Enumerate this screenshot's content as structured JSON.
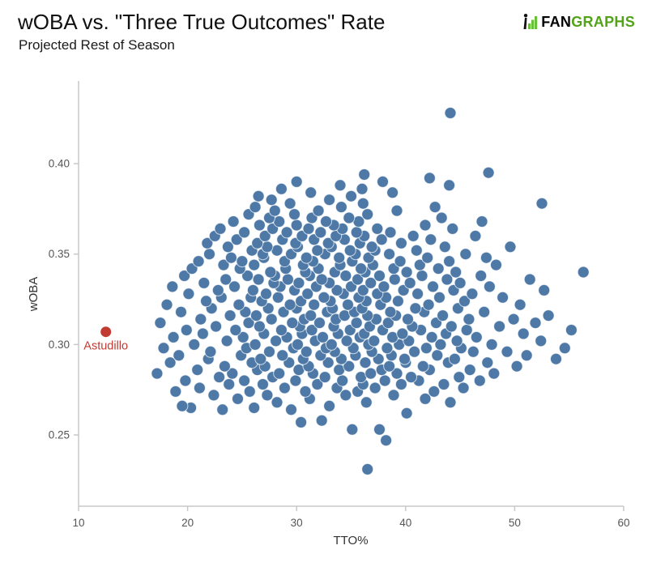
{
  "header": {
    "title": "wOBA vs. \"Three True Outcomes\" Rate",
    "subtitle": "Projected Rest of Season",
    "logo": {
      "brand_black": "FAN",
      "brand_green": "GRAPHS"
    }
  },
  "colors": {
    "point": "#4e79a7",
    "point_stroke": "#ffffff",
    "highlight": "#c23b33",
    "axis": "#c8c8c8",
    "tick_text": "#555555",
    "axis_title": "#333333",
    "logo_green": "#6abf3a",
    "logo_black": "#111111"
  },
  "chart_data": {
    "type": "scatter",
    "title": "wOBA vs. \"Three True Outcomes\" Rate",
    "subtitle": "Projected Rest of Season",
    "xlabel": "TTO%",
    "ylabel": "wOBA",
    "xlim": [
      10,
      60
    ],
    "ylim": [
      0.2106,
      0.4457
    ],
    "xticks": [
      10,
      20,
      30,
      40,
      50,
      60
    ],
    "xtick_labels": [
      "10",
      "20",
      "30",
      "40",
      "50",
      "60"
    ],
    "yticks": [
      0.25,
      0.3,
      0.35,
      0.4
    ],
    "ytick_labels": [
      "0.25",
      "0.30",
      "0.35",
      "0.40"
    ],
    "grid": false,
    "legend": "none",
    "highlight": {
      "label": "Astudillo",
      "x": 12.5,
      "y": 0.307
    },
    "points": [
      [
        36.5,
        0.231
      ],
      [
        38.2,
        0.247
      ],
      [
        35.1,
        0.253
      ],
      [
        37.6,
        0.253
      ],
      [
        30.4,
        0.257
      ],
      [
        32.3,
        0.258
      ],
      [
        40.1,
        0.262
      ],
      [
        23.2,
        0.264
      ],
      [
        29.5,
        0.264
      ],
      [
        20.3,
        0.265
      ],
      [
        26.1,
        0.265
      ],
      [
        19.5,
        0.266
      ],
      [
        33.0,
        0.266
      ],
      [
        28.2,
        0.268
      ],
      [
        36.4,
        0.268
      ],
      [
        44.1,
        0.268
      ],
      [
        24.6,
        0.27
      ],
      [
        31.2,
        0.27
      ],
      [
        41.8,
        0.27
      ],
      [
        22.4,
        0.272
      ],
      [
        27.3,
        0.272
      ],
      [
        34.5,
        0.272
      ],
      [
        38.9,
        0.272
      ],
      [
        18.9,
        0.274
      ],
      [
        25.7,
        0.274
      ],
      [
        30.8,
        0.274
      ],
      [
        35.6,
        0.274
      ],
      [
        42.6,
        0.274
      ],
      [
        21.1,
        0.276
      ],
      [
        28.9,
        0.276
      ],
      [
        33.7,
        0.276
      ],
      [
        37.2,
        0.276
      ],
      [
        45.3,
        0.276
      ],
      [
        23.8,
        0.278
      ],
      [
        26.9,
        0.278
      ],
      [
        31.9,
        0.278
      ],
      [
        36.1,
        0.278
      ],
      [
        39.6,
        0.278
      ],
      [
        43.5,
        0.278
      ],
      [
        19.8,
        0.28
      ],
      [
        25.2,
        0.28
      ],
      [
        29.9,
        0.28
      ],
      [
        34.2,
        0.28
      ],
      [
        38.1,
        0.28
      ],
      [
        41.2,
        0.28
      ],
      [
        46.8,
        0.28
      ],
      [
        22.9,
        0.282
      ],
      [
        27.8,
        0.282
      ],
      [
        32.6,
        0.282
      ],
      [
        35.9,
        0.282
      ],
      [
        40.5,
        0.282
      ],
      [
        44.9,
        0.282
      ],
      [
        17.2,
        0.284
      ],
      [
        24.1,
        0.284
      ],
      [
        28.4,
        0.284
      ],
      [
        31.5,
        0.284
      ],
      [
        36.8,
        0.284
      ],
      [
        39.2,
        0.284
      ],
      [
        48.1,
        0.284
      ],
      [
        20.9,
        0.286
      ],
      [
        26.4,
        0.286
      ],
      [
        30.2,
        0.286
      ],
      [
        33.9,
        0.286
      ],
      [
        37.8,
        0.286
      ],
      [
        42.2,
        0.286
      ],
      [
        45.9,
        0.286
      ],
      [
        23.4,
        0.288
      ],
      [
        27.1,
        0.288
      ],
      [
        31.1,
        0.288
      ],
      [
        34.8,
        0.288
      ],
      [
        38.5,
        0.288
      ],
      [
        41.6,
        0.288
      ],
      [
        50.2,
        0.288
      ],
      [
        18.4,
        0.29
      ],
      [
        25.9,
        0.29
      ],
      [
        29.3,
        0.29
      ],
      [
        32.9,
        0.29
      ],
      [
        36.3,
        0.29
      ],
      [
        40.0,
        0.29
      ],
      [
        43.9,
        0.29
      ],
      [
        47.5,
        0.29
      ],
      [
        21.9,
        0.292
      ],
      [
        26.7,
        0.292
      ],
      [
        30.6,
        0.292
      ],
      [
        34.1,
        0.292
      ],
      [
        37.5,
        0.292
      ],
      [
        39.9,
        0.292
      ],
      [
        44.5,
        0.292
      ],
      [
        53.8,
        0.292
      ],
      [
        19.2,
        0.294
      ],
      [
        24.9,
        0.294
      ],
      [
        28.7,
        0.294
      ],
      [
        32.2,
        0.294
      ],
      [
        35.4,
        0.294
      ],
      [
        38.7,
        0.294
      ],
      [
        42.9,
        0.294
      ],
      [
        51.1,
        0.294
      ],
      [
        22.1,
        0.296
      ],
      [
        27.5,
        0.296
      ],
      [
        30.9,
        0.296
      ],
      [
        33.5,
        0.296
      ],
      [
        36.9,
        0.296
      ],
      [
        40.8,
        0.296
      ],
      [
        46.2,
        0.296
      ],
      [
        49.3,
        0.296
      ],
      [
        17.8,
        0.298
      ],
      [
        25.4,
        0.298
      ],
      [
        29.7,
        0.298
      ],
      [
        32.7,
        0.298
      ],
      [
        35.2,
        0.298
      ],
      [
        38.3,
        0.298
      ],
      [
        41.9,
        0.298
      ],
      [
        45.1,
        0.298
      ],
      [
        54.6,
        0.298
      ],
      [
        20.6,
        0.3
      ],
      [
        26.2,
        0.3
      ],
      [
        30.1,
        0.3
      ],
      [
        33.2,
        0.3
      ],
      [
        36.6,
        0.3
      ],
      [
        39.4,
        0.3
      ],
      [
        43.2,
        0.3
      ],
      [
        47.9,
        0.3
      ],
      [
        23.6,
        0.302
      ],
      [
        28.1,
        0.302
      ],
      [
        31.7,
        0.302
      ],
      [
        34.6,
        0.302
      ],
      [
        37.1,
        0.302
      ],
      [
        40.3,
        0.302
      ],
      [
        44.7,
        0.302
      ],
      [
        52.4,
        0.302
      ],
      [
        18.7,
        0.304
      ],
      [
        25.1,
        0.304
      ],
      [
        29.1,
        0.304
      ],
      [
        32.4,
        0.304
      ],
      [
        35.8,
        0.304
      ],
      [
        38.8,
        0.304
      ],
      [
        42.4,
        0.304
      ],
      [
        46.5,
        0.304
      ],
      [
        21.4,
        0.306
      ],
      [
        27.0,
        0.306
      ],
      [
        30.5,
        0.306
      ],
      [
        33.8,
        0.306
      ],
      [
        36.2,
        0.306
      ],
      [
        39.7,
        0.306
      ],
      [
        43.7,
        0.306
      ],
      [
        50.8,
        0.306
      ],
      [
        19.9,
        0.308
      ],
      [
        24.4,
        0.308
      ],
      [
        28.6,
        0.308
      ],
      [
        31.4,
        0.308
      ],
      [
        34.9,
        0.308
      ],
      [
        37.9,
        0.308
      ],
      [
        41.4,
        0.308
      ],
      [
        45.6,
        0.308
      ],
      [
        55.2,
        0.308
      ],
      [
        22.6,
        0.31
      ],
      [
        26.6,
        0.31
      ],
      [
        30.3,
        0.31
      ],
      [
        33.4,
        0.31
      ],
      [
        36.7,
        0.31
      ],
      [
        40.6,
        0.31
      ],
      [
        44.2,
        0.31
      ],
      [
        48.6,
        0.31
      ],
      [
        17.5,
        0.312
      ],
      [
        25.6,
        0.312
      ],
      [
        29.6,
        0.312
      ],
      [
        32.1,
        0.312
      ],
      [
        35.5,
        0.312
      ],
      [
        38.4,
        0.312
      ],
      [
        42.8,
        0.312
      ],
      [
        51.9,
        0.312
      ],
      [
        21.2,
        0.314
      ],
      [
        27.7,
        0.314
      ],
      [
        30.7,
        0.314
      ],
      [
        33.6,
        0.314
      ],
      [
        37.3,
        0.314
      ],
      [
        40.2,
        0.314
      ],
      [
        45.8,
        0.314
      ],
      [
        49.9,
        0.314
      ],
      [
        23.9,
        0.316
      ],
      [
        26.3,
        0.316
      ],
      [
        31.3,
        0.316
      ],
      [
        34.4,
        0.316
      ],
      [
        36.5,
        0.316
      ],
      [
        39.1,
        0.316
      ],
      [
        43.4,
        0.316
      ],
      [
        53.1,
        0.316
      ],
      [
        19.4,
        0.318
      ],
      [
        25.3,
        0.318
      ],
      [
        28.8,
        0.318
      ],
      [
        32.8,
        0.318
      ],
      [
        35.3,
        0.318
      ],
      [
        38.6,
        0.318
      ],
      [
        41.7,
        0.318
      ],
      [
        47.2,
        0.318
      ],
      [
        22.2,
        0.32
      ],
      [
        27.4,
        0.32
      ],
      [
        30.0,
        0.32
      ],
      [
        33.3,
        0.32
      ],
      [
        36.0,
        0.32
      ],
      [
        40.9,
        0.32
      ],
      [
        44.8,
        0.32
      ],
      [
        18.1,
        0.322
      ],
      [
        24.7,
        0.322
      ],
      [
        29.4,
        0.322
      ],
      [
        31.6,
        0.322
      ],
      [
        34.7,
        0.322
      ],
      [
        37.7,
        0.322
      ],
      [
        42.1,
        0.322
      ],
      [
        50.5,
        0.322
      ],
      [
        21.7,
        0.324
      ],
      [
        26.8,
        0.324
      ],
      [
        30.4,
        0.324
      ],
      [
        33.1,
        0.324
      ],
      [
        36.4,
        0.324
      ],
      [
        39.3,
        0.324
      ],
      [
        45.4,
        0.324
      ],
      [
        23.1,
        0.326
      ],
      [
        25.8,
        0.326
      ],
      [
        28.3,
        0.326
      ],
      [
        32.5,
        0.326
      ],
      [
        35.7,
        0.326
      ],
      [
        38.2,
        0.326
      ],
      [
        43.1,
        0.326
      ],
      [
        48.9,
        0.326
      ],
      [
        20.1,
        0.328
      ],
      [
        27.2,
        0.328
      ],
      [
        31.0,
        0.328
      ],
      [
        34.3,
        0.328
      ],
      [
        37.4,
        0.328
      ],
      [
        41.1,
        0.328
      ],
      [
        46.1,
        0.328
      ],
      [
        22.8,
        0.33
      ],
      [
        26.0,
        0.33
      ],
      [
        29.8,
        0.33
      ],
      [
        33.7,
        0.33
      ],
      [
        36.1,
        0.33
      ],
      [
        39.8,
        0.33
      ],
      [
        44.4,
        0.33
      ],
      [
        52.7,
        0.33
      ],
      [
        18.6,
        0.332
      ],
      [
        24.3,
        0.332
      ],
      [
        28.5,
        0.332
      ],
      [
        31.8,
        0.332
      ],
      [
        35.0,
        0.332
      ],
      [
        38.0,
        0.332
      ],
      [
        42.5,
        0.332
      ],
      [
        47.7,
        0.332
      ],
      [
        21.5,
        0.334
      ],
      [
        27.9,
        0.334
      ],
      [
        30.2,
        0.334
      ],
      [
        33.0,
        0.334
      ],
      [
        36.8,
        0.334
      ],
      [
        40.4,
        0.334
      ],
      [
        45.0,
        0.334
      ],
      [
        23.5,
        0.336
      ],
      [
        26.5,
        0.336
      ],
      [
        29.2,
        0.336
      ],
      [
        32.3,
        0.336
      ],
      [
        35.6,
        0.336
      ],
      [
        39.0,
        0.336
      ],
      [
        43.8,
        0.336
      ],
      [
        51.4,
        0.336
      ],
      [
        19.7,
        0.338
      ],
      [
        25.5,
        0.338
      ],
      [
        28.0,
        0.338
      ],
      [
        31.2,
        0.338
      ],
      [
        34.5,
        0.338
      ],
      [
        37.6,
        0.338
      ],
      [
        41.5,
        0.338
      ],
      [
        46.9,
        0.338
      ],
      [
        27.6,
        0.34
      ],
      [
        30.8,
        0.34
      ],
      [
        33.5,
        0.34
      ],
      [
        36.3,
        0.34
      ],
      [
        40.1,
        0.34
      ],
      [
        44.6,
        0.34
      ],
      [
        56.3,
        0.34
      ],
      [
        20.4,
        0.342
      ],
      [
        24.8,
        0.342
      ],
      [
        29.0,
        0.342
      ],
      [
        32.0,
        0.342
      ],
      [
        35.9,
        0.342
      ],
      [
        38.9,
        0.342
      ],
      [
        43.0,
        0.342
      ],
      [
        23.3,
        0.344
      ],
      [
        26.1,
        0.344
      ],
      [
        30.6,
        0.344
      ],
      [
        34.0,
        0.344
      ],
      [
        37.0,
        0.344
      ],
      [
        41.3,
        0.344
      ],
      [
        48.3,
        0.344
      ],
      [
        21.0,
        0.346
      ],
      [
        25.0,
        0.346
      ],
      [
        28.9,
        0.346
      ],
      [
        31.5,
        0.346
      ],
      [
        35.1,
        0.346
      ],
      [
        39.5,
        0.346
      ],
      [
        44.0,
        0.346
      ],
      [
        24.0,
        0.348
      ],
      [
        27.0,
        0.348
      ],
      [
        30.9,
        0.348
      ],
      [
        33.9,
        0.348
      ],
      [
        36.6,
        0.348
      ],
      [
        42.0,
        0.348
      ],
      [
        47.4,
        0.348
      ],
      [
        22.0,
        0.35
      ],
      [
        26.9,
        0.35
      ],
      [
        29.5,
        0.35
      ],
      [
        32.6,
        0.35
      ],
      [
        35.4,
        0.35
      ],
      [
        38.5,
        0.35
      ],
      [
        45.5,
        0.35
      ],
      [
        25.9,
        0.352
      ],
      [
        28.2,
        0.352
      ],
      [
        31.9,
        0.352
      ],
      [
        34.9,
        0.352
      ],
      [
        37.2,
        0.352
      ],
      [
        41.0,
        0.352
      ],
      [
        23.7,
        0.354
      ],
      [
        27.3,
        0.354
      ],
      [
        30.1,
        0.354
      ],
      [
        33.2,
        0.354
      ],
      [
        36.9,
        0.354
      ],
      [
        43.6,
        0.354
      ],
      [
        49.6,
        0.354
      ],
      [
        21.8,
        0.356
      ],
      [
        26.4,
        0.356
      ],
      [
        29.9,
        0.356
      ],
      [
        32.9,
        0.356
      ],
      [
        35.8,
        0.356
      ],
      [
        39.6,
        0.356
      ],
      [
        24.5,
        0.358
      ],
      [
        28.7,
        0.358
      ],
      [
        31.6,
        0.358
      ],
      [
        34.4,
        0.358
      ],
      [
        37.8,
        0.358
      ],
      [
        42.3,
        0.358
      ],
      [
        22.5,
        0.36
      ],
      [
        27.1,
        0.36
      ],
      [
        30.5,
        0.36
      ],
      [
        33.6,
        0.36
      ],
      [
        36.2,
        0.36
      ],
      [
        40.7,
        0.36
      ],
      [
        46.4,
        0.36
      ],
      [
        25.2,
        0.362
      ],
      [
        29.1,
        0.362
      ],
      [
        32.2,
        0.362
      ],
      [
        35.5,
        0.362
      ],
      [
        38.6,
        0.362
      ],
      [
        23.0,
        0.364
      ],
      [
        27.8,
        0.364
      ],
      [
        31.1,
        0.364
      ],
      [
        34.2,
        0.364
      ],
      [
        37.4,
        0.364
      ],
      [
        44.3,
        0.364
      ],
      [
        26.6,
        0.366
      ],
      [
        30.0,
        0.366
      ],
      [
        33.4,
        0.366
      ],
      [
        41.8,
        0.366
      ],
      [
        24.2,
        0.368
      ],
      [
        28.4,
        0.368
      ],
      [
        32.7,
        0.368
      ],
      [
        35.7,
        0.368
      ],
      [
        47.0,
        0.368
      ],
      [
        27.5,
        0.37
      ],
      [
        31.4,
        0.37
      ],
      [
        34.8,
        0.37
      ],
      [
        43.3,
        0.37
      ],
      [
        25.6,
        0.372
      ],
      [
        29.8,
        0.372
      ],
      [
        36.5,
        0.372
      ],
      [
        28.0,
        0.374
      ],
      [
        32.0,
        0.374
      ],
      [
        39.2,
        0.374
      ],
      [
        26.2,
        0.376
      ],
      [
        34.1,
        0.376
      ],
      [
        42.7,
        0.376
      ],
      [
        29.4,
        0.378
      ],
      [
        36.1,
        0.378
      ],
      [
        52.5,
        0.378
      ],
      [
        27.7,
        0.38
      ],
      [
        33.0,
        0.38
      ],
      [
        26.5,
        0.382
      ],
      [
        35.0,
        0.382
      ],
      [
        31.3,
        0.384
      ],
      [
        38.8,
        0.384
      ],
      [
        28.6,
        0.386
      ],
      [
        36.0,
        0.386
      ],
      [
        34.0,
        0.388
      ],
      [
        44.0,
        0.388
      ],
      [
        30.0,
        0.39
      ],
      [
        37.9,
        0.39
      ],
      [
        42.2,
        0.392
      ],
      [
        36.2,
        0.394
      ],
      [
        47.6,
        0.395
      ],
      [
        44.1,
        0.428
      ]
    ]
  }
}
